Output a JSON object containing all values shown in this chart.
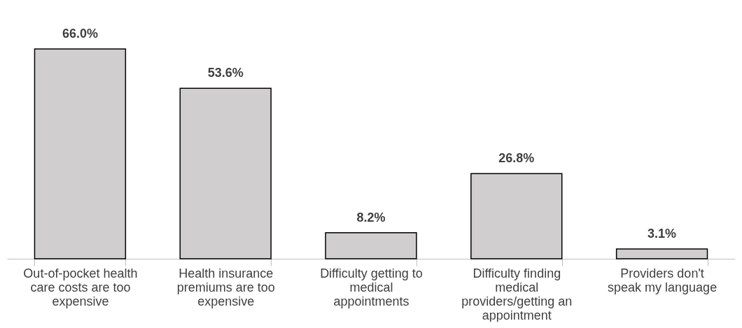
{
  "chart_data": {
    "type": "bar",
    "categories": [
      "Out-of-pocket health care costs are too expensive",
      "Health insurance premiums are too expensive",
      "Difficulty getting to medical appointments",
      "Difficulty finding medical providers/getting an appointment",
      "Providers don't speak my language"
    ],
    "values": [
      66.0,
      53.6,
      8.2,
      26.8,
      3.1
    ],
    "value_labels": [
      "66.0%",
      "53.6%",
      "8.2%",
      "26.8%",
      "3.1%"
    ],
    "color": "#d0cece"
  }
}
